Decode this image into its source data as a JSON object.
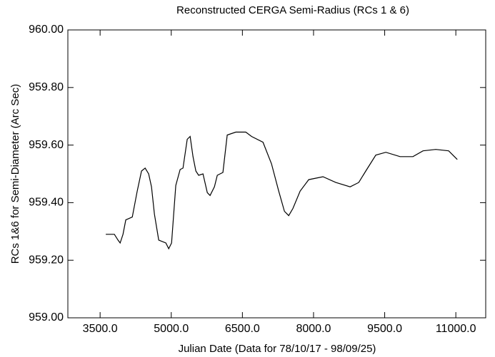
{
  "chart_data": {
    "type": "line",
    "title": "Reconstructed CERGA Semi-Radius (RCs 1 & 6)",
    "x_label": "Julian Date (Data for 78/10/17 - 98/09/25)",
    "y_label": "RCs 1&6 for Semi-Diameter (Arc Sec)",
    "x": [
      3620,
      3801,
      3877,
      3922,
      3982,
      4042,
      4178,
      4283,
      4373,
      4449,
      4524,
      4584,
      4645,
      4735,
      4886,
      4946,
      5006,
      5096,
      5187,
      5247,
      5337,
      5398,
      5458,
      5518,
      5578,
      5669,
      5759,
      5819,
      5910,
      5970,
      6090,
      6180,
      6361,
      6572,
      6693,
      6934,
      7114,
      7265,
      7386,
      7476,
      7566,
      7717,
      7898,
      8199,
      8470,
      8771,
      8952,
      9102,
      9313,
      9524,
      9825,
      10096,
      10307,
      10578,
      10849,
      11030
    ],
    "series": [
      {
        "color": "#000000",
        "values": [
          959.29,
          959.29,
          959.27,
          959.26,
          959.29,
          959.34,
          959.35,
          959.44,
          959.51,
          959.52,
          959.5,
          959.455,
          959.36,
          959.27,
          959.26,
          959.24,
          959.26,
          959.46,
          959.515,
          959.52,
          959.62,
          959.63,
          959.56,
          959.51,
          959.495,
          959.5,
          959.435,
          959.425,
          959.455,
          959.495,
          959.505,
          959.635,
          959.645,
          959.645,
          959.63,
          959.61,
          959.535,
          959.44,
          959.37,
          959.355,
          959.38,
          959.44,
          959.48,
          959.49,
          959.47,
          959.455,
          959.47,
          959.51,
          959.565,
          959.575,
          959.56,
          959.56,
          959.58,
          959.585,
          959.58,
          959.55
        ]
      }
    ],
    "xlim": [
      2820,
      11630
    ],
    "ylim": [
      959,
      960
    ],
    "xticks": [
      {
        "value": 3500,
        "label": "3500.0"
      },
      {
        "value": 5000,
        "label": "5000.0"
      },
      {
        "value": 6500,
        "label": "6500.0"
      },
      {
        "value": 8000,
        "label": "8000.0"
      },
      {
        "value": 9500,
        "label": "9500.0"
      },
      {
        "value": 11000,
        "label": "11000.0"
      }
    ],
    "yticks": [
      {
        "value": 959,
        "label": "959.00"
      },
      {
        "value": 959.2,
        "label": "959.20"
      },
      {
        "value": 959.4,
        "label": "959.40"
      },
      {
        "value": 959.6,
        "label": "959.60"
      },
      {
        "value": 959.8,
        "label": "959.80"
      },
      {
        "value": 960,
        "label": "960.00"
      }
    ],
    "grid": false
  }
}
